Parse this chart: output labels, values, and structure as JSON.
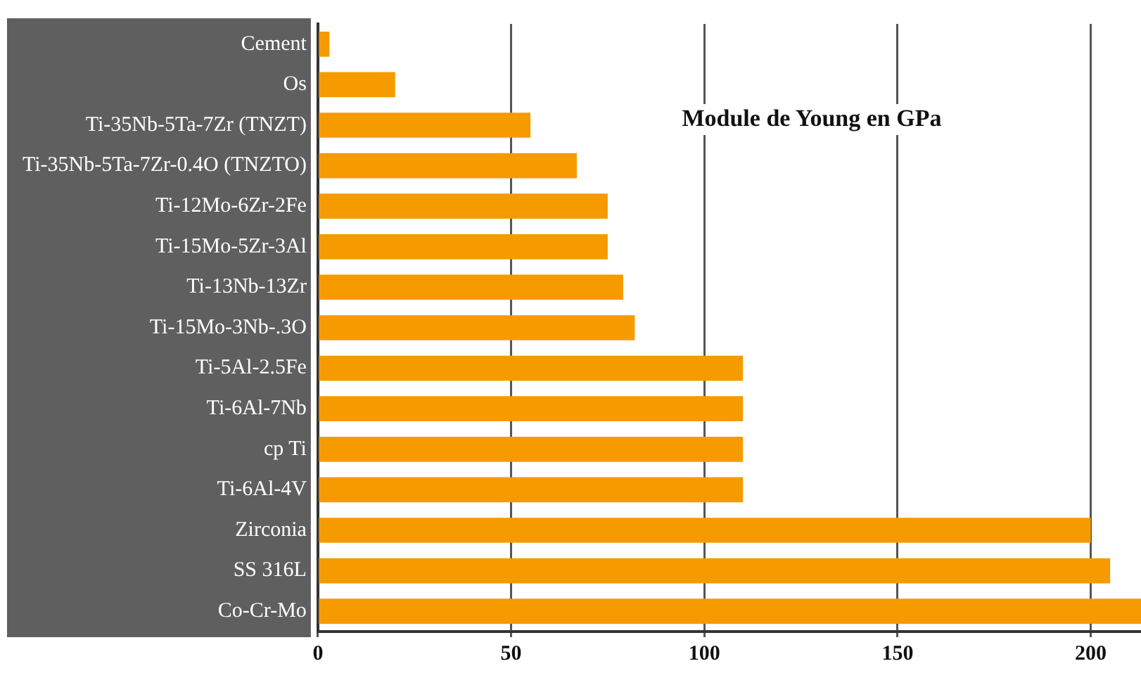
{
  "chart_data": {
    "type": "bar",
    "orientation": "horizontal",
    "annotations": [
      "Module de Young en GPa"
    ],
    "categories": [
      "Cement",
      "Os",
      "Ti-35Nb-5Ta-7Zr (TNZT)",
      "Ti-35Nb-5Ta-7Zr-0.4O (TNZTO)",
      "Ti-12Mo-6Zr-2Fe",
      "Ti-15Mo-5Zr-3Al",
      "Ti-13Nb-13Zr",
      "Ti-15Mo-3Nb-.3O",
      "Ti-5Al-2.5Fe",
      "Ti-6Al-7Nb",
      "cp Ti",
      "Ti-6Al-4V",
      "Zirconia",
      "SS 316L",
      "Co-Cr-Mo"
    ],
    "values": [
      3,
      20,
      55,
      67,
      75,
      75,
      79,
      82,
      110,
      110,
      110,
      110,
      200,
      205,
      213
    ],
    "color": "#f59b00",
    "xlim": [
      0,
      213
    ],
    "xticks": [
      0,
      50,
      100,
      150,
      200
    ],
    "grid": "x",
    "legend": false
  }
}
